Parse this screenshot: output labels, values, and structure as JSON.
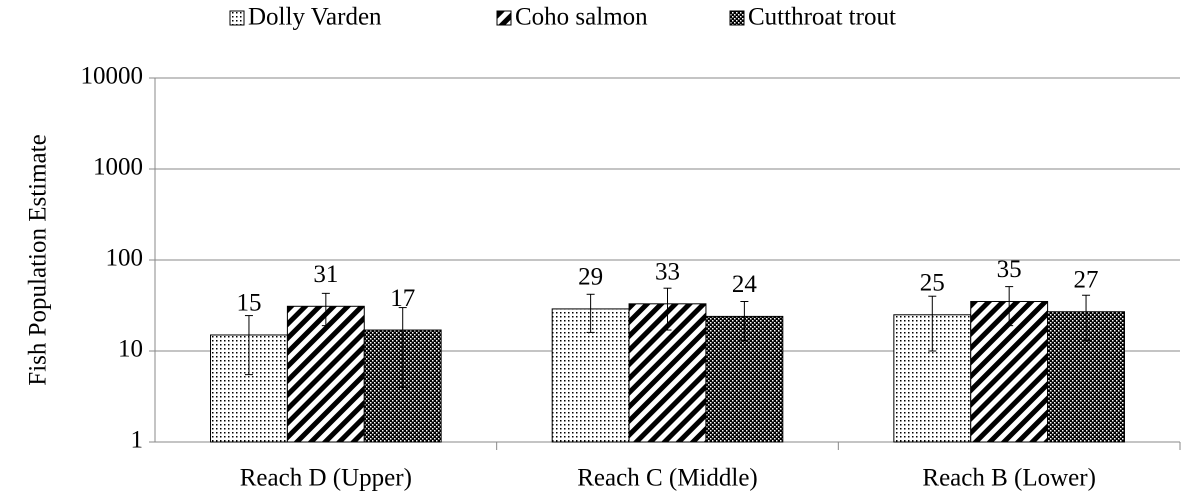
{
  "chart_data": {
    "type": "bar",
    "log": true,
    "ylabel": "Fish Population Estimate",
    "categories": [
      "Reach D (Upper)",
      "Reach C (Middle)",
      "Reach B (Lower)"
    ],
    "series": [
      {
        "name": "Dolly Varden",
        "color": "#000000",
        "pattern": "dots",
        "values": [
          15,
          29,
          25
        ],
        "errors": [
          9.5,
          13,
          15
        ]
      },
      {
        "name": "Coho salmon",
        "color": "#000000",
        "pattern": "diagonal",
        "values": [
          31,
          33,
          35
        ],
        "errors": [
          12,
          16,
          16
        ]
      },
      {
        "name": "Cutthroat trout",
        "color": "#000000",
        "pattern": "checker",
        "values": [
          17,
          24,
          27
        ],
        "errors": [
          13,
          11,
          14
        ]
      }
    ],
    "ylim": [
      1,
      10000
    ],
    "yticks": [
      1,
      10,
      100,
      1000,
      10000
    ],
    "grid": true,
    "legend": "top"
  }
}
